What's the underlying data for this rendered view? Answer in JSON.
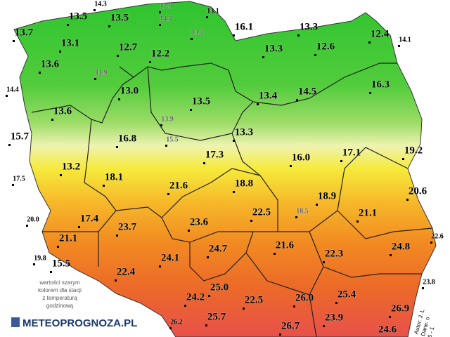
{
  "stations": [
    {
      "label": "14.3",
      "color": "#000"
    },
    {
      "label": "13.5",
      "color": "#000"
    },
    {
      "label": "13.5",
      "color": "#000"
    },
    {
      "label": "12.9",
      "color": "#666"
    },
    {
      "label": "14.4",
      "color": "#666"
    },
    {
      "label": "13.1",
      "color": "#000"
    },
    {
      "label": "13.2",
      "color": "#666"
    },
    {
      "label": "16.1",
      "color": "#000"
    },
    {
      "label": "13.3",
      "color": "#000"
    },
    {
      "label": "12.4",
      "color": "#000"
    },
    {
      "label": "14.1",
      "color": "#000"
    },
    {
      "label": "13.7",
      "color": "#000"
    },
    {
      "label": "13.1",
      "color": "#000"
    },
    {
      "label": "12.7",
      "color": "#000"
    },
    {
      "label": "12.2",
      "color": "#000"
    },
    {
      "label": "13.3",
      "color": "#000"
    },
    {
      "label": "12.6",
      "color": "#000"
    },
    {
      "label": "13.6",
      "color": "#000"
    },
    {
      "label": "11.9",
      "color": "#666"
    },
    {
      "label": "13.0",
      "color": "#000"
    },
    {
      "label": "14.4",
      "color": "#000"
    },
    {
      "label": "16.3",
      "color": "#000"
    },
    {
      "label": "14.5",
      "color": "#000"
    },
    {
      "label": "13.4",
      "color": "#000"
    },
    {
      "label": "13.5",
      "color": "#000"
    },
    {
      "label": "13.6",
      "color": "#000"
    },
    {
      "label": "13.9",
      "color": "#666"
    },
    {
      "label": "13.3",
      "color": "#000"
    },
    {
      "label": "15.7",
      "color": "#000"
    },
    {
      "label": "15.5",
      "color": "#666"
    },
    {
      "label": "16.8",
      "color": "#000"
    },
    {
      "label": "17.3",
      "color": "#000"
    },
    {
      "label": "16.0",
      "color": "#000"
    },
    {
      "label": "17.1",
      "color": "#000"
    },
    {
      "label": "19.2",
      "color": "#000"
    },
    {
      "label": "13.2",
      "color": "#000"
    },
    {
      "label": "17.5",
      "color": "#000"
    },
    {
      "label": "18.1",
      "color": "#000"
    },
    {
      "label": "21.6",
      "color": "#000"
    },
    {
      "label": "18.8",
      "color": "#000"
    },
    {
      "label": "20.6",
      "color": "#000"
    },
    {
      "label": "18.9",
      "color": "#000"
    },
    {
      "label": "22.5",
      "color": "#000"
    },
    {
      "label": "18.5",
      "color": "#666"
    },
    {
      "label": "21.1",
      "color": "#000"
    },
    {
      "label": "20.0",
      "color": "#000"
    },
    {
      "label": "17.4",
      "color": "#000"
    },
    {
      "label": "23.7",
      "color": "#000"
    },
    {
      "label": "23.6",
      "color": "#000"
    },
    {
      "label": "22.6",
      "color": "#000"
    },
    {
      "label": "21.1",
      "color": "#000"
    },
    {
      "label": "21.6",
      "color": "#000"
    },
    {
      "label": "22.3",
      "color": "#000"
    },
    {
      "label": "24.8",
      "color": "#000"
    },
    {
      "label": "19.8",
      "color": "#000"
    },
    {
      "label": "15.5",
      "color": "#000"
    },
    {
      "label": "24.1",
      "color": "#000"
    },
    {
      "label": "24.7",
      "color": "#000"
    },
    {
      "label": "22.4",
      "color": "#000"
    },
    {
      "label": "23.8",
      "color": "#000"
    },
    {
      "label": "25.0",
      "color": "#000"
    },
    {
      "label": "25.4",
      "color": "#000"
    },
    {
      "label": "24.2",
      "color": "#000"
    },
    {
      "label": "22.5",
      "color": "#000"
    },
    {
      "label": "26.0",
      "color": "#000"
    },
    {
      "label": "26.9",
      "color": "#000"
    },
    {
      "label": "25.7",
      "color": "#000"
    },
    {
      "label": "23.9",
      "color": "#000"
    },
    {
      "label": "26.2",
      "color": "#000"
    },
    {
      "label": "26.7",
      "color": "#000"
    },
    {
      "label": "24.6",
      "color": "#000"
    }
  ],
  "note": [
    "wartości szarym",
    "kolorem dla stacji",
    "z temperaturą",
    "godzinową"
  ],
  "logo": "METEOPROGNOZA.PL",
  "credits": [
    "Autor: J. L",
    "Dane: o",
    "6 - 1"
  ]
}
